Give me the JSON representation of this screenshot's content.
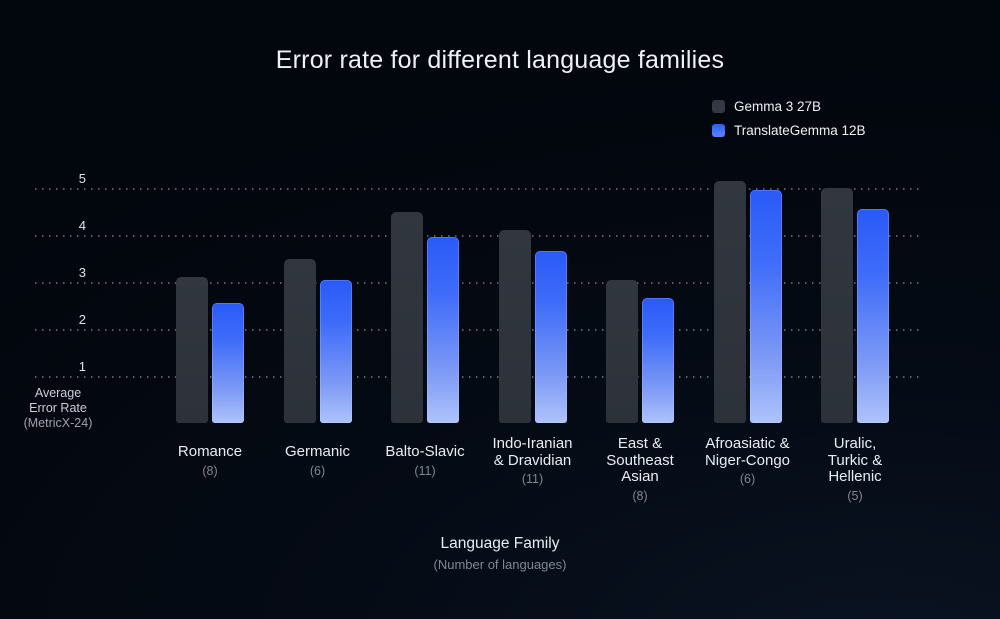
{
  "title": "Error rate for different language families",
  "legend": {
    "items": [
      {
        "label": "Gemma 3 27B",
        "color": "#333842"
      },
      {
        "label": "TranslateGemma 12B",
        "color_top": "#2e5ef7",
        "color_bottom": "#5c84f6"
      }
    ]
  },
  "y_axis": {
    "title_lines": [
      "Average",
      "Error Rate",
      "(MetricX-24)"
    ],
    "ticks": [
      5,
      4,
      3,
      2,
      1
    ]
  },
  "x_axis": {
    "title": "Language Family",
    "subtitle": "(Number of languages)"
  },
  "colors": {
    "background": "#04080f",
    "title_text": "#eef2f7",
    "tick_text": "#dfe5ee",
    "muted_text": "#7f8792",
    "gridline": "#96a2b9",
    "series1_bar": "#31363f",
    "series2_bar_top": "#2a5af8",
    "series2_bar_mid": "#7c99f5",
    "series2_bar_bottom": "#aec3fb"
  },
  "chart_data": {
    "type": "bar",
    "title": "Error rate for different language families",
    "xlabel": "Language Family",
    "xlabel_note": "(Number of languages)",
    "ylabel": "Average Error Rate (MetricX-24)",
    "ylim": [
      0,
      5.5
    ],
    "yticks": [
      1,
      2,
      3,
      4,
      5
    ],
    "grid": "horizontal dotted lines at y=1..5",
    "legend_position": "top-right",
    "categories": [
      "Romance",
      "Germanic",
      "Balto-Slavic",
      "Indo-Iranian & Dravidian",
      "East & Southeast Asian",
      "Afroasiatic & Niger-Congo",
      "Uralic, Turkic & Hellenic"
    ],
    "category_counts": [
      8,
      6,
      11,
      11,
      8,
      6,
      5
    ],
    "category_label_lines": [
      [
        "Romance"
      ],
      [
        "Germanic"
      ],
      [
        "Balto-Slavic"
      ],
      [
        "Indo-Iranian",
        "& Dravidian"
      ],
      [
        "East &",
        "Southeast",
        "Asian"
      ],
      [
        "Afroasiatic &",
        "Niger-Congo"
      ],
      [
        "Uralic,",
        "Turkic &",
        "Hellenic"
      ]
    ],
    "series": [
      {
        "name": "Gemma 3 27B",
        "values": [
          3.1,
          3.5,
          4.5,
          4.1,
          3.05,
          5.15,
          5.0
        ]
      },
      {
        "name": "TranslateGemma 12B",
        "values": [
          2.55,
          3.05,
          3.95,
          3.65,
          2.65,
          4.95,
          4.55
        ]
      }
    ]
  }
}
